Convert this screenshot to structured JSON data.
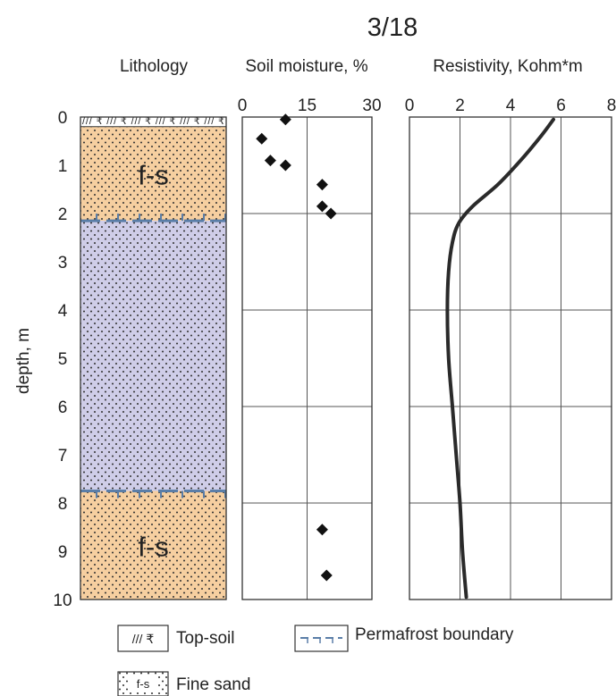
{
  "title": "3/18",
  "depth_axis": {
    "label": "depth, m",
    "ticks": [
      "0",
      "1",
      "2",
      "3",
      "4",
      "5",
      "6",
      "7",
      "8",
      "9",
      "10"
    ],
    "range": [
      0,
      10
    ]
  },
  "lithology": {
    "header": "Lithology",
    "layers": [
      {
        "type": "top-soil",
        "from": 0.0,
        "to": 0.2,
        "pattern": "/// ₹"
      },
      {
        "type": "fine-sand-thawed",
        "from": 0.2,
        "to": 2.15,
        "label": "f-s",
        "color": "#f6cfa0"
      },
      {
        "type": "fine-sand-frozen",
        "from": 2.15,
        "to": 7.75,
        "label": "",
        "color": "#cfcde8"
      },
      {
        "type": "fine-sand-thawed",
        "from": 7.75,
        "to": 10.0,
        "label": "f-s",
        "color": "#f6cfa0"
      }
    ],
    "permafrost_boundaries": [
      2.15,
      7.75
    ]
  },
  "legend": {
    "items": [
      {
        "name": "top-soil",
        "symbol": "/// ₹",
        "label": "Top-soil"
      },
      {
        "name": "permafrost-boundary",
        "label": "Permafrost boundary"
      },
      {
        "name": "fine-sand",
        "symbol": "f-s",
        "label": "Fine sand"
      }
    ]
  },
  "chart_data": [
    {
      "type": "scatter",
      "title": "Soil moisture, %",
      "x_ticks": [
        "0",
        "15",
        "30"
      ],
      "xlim": [
        0,
        30
      ],
      "ylim": [
        0,
        10
      ],
      "points": [
        {
          "moisture": 10,
          "depth": 0.05
        },
        {
          "moisture": 4.5,
          "depth": 0.45
        },
        {
          "moisture": 6.5,
          "depth": 0.9
        },
        {
          "moisture": 10,
          "depth": 1.0
        },
        {
          "moisture": 18.5,
          "depth": 1.4
        },
        {
          "moisture": 18.5,
          "depth": 1.85
        },
        {
          "moisture": 20.5,
          "depth": 2.0
        },
        {
          "moisture": 18.5,
          "depth": 8.55
        },
        {
          "moisture": 19.5,
          "depth": 9.5
        }
      ]
    },
    {
      "type": "line",
      "title": "Resistivity, Kohm*m",
      "x_ticks": [
        "0",
        "2",
        "4",
        "6",
        "8"
      ],
      "xlim": [
        0,
        8
      ],
      "ylim": [
        0,
        10
      ],
      "series": [
        {
          "points": [
            {
              "resistivity": 5.7,
              "depth": 0.05
            },
            {
              "resistivity": 5.2,
              "depth": 0.4
            },
            {
              "resistivity": 4.4,
              "depth": 0.9
            },
            {
              "resistivity": 3.5,
              "depth": 1.4
            },
            {
              "resistivity": 2.5,
              "depth": 1.85
            },
            {
              "resistivity": 1.95,
              "depth": 2.2
            },
            {
              "resistivity": 1.7,
              "depth": 2.6
            },
            {
              "resistivity": 1.55,
              "depth": 3.2
            },
            {
              "resistivity": 1.5,
              "depth": 4.0
            },
            {
              "resistivity": 1.55,
              "depth": 5.0
            },
            {
              "resistivity": 1.7,
              "depth": 6.0
            },
            {
              "resistivity": 1.85,
              "depth": 7.0
            },
            {
              "resistivity": 2.0,
              "depth": 8.0
            },
            {
              "resistivity": 2.1,
              "depth": 9.0
            },
            {
              "resistivity": 2.25,
              "depth": 9.95
            }
          ]
        }
      ]
    }
  ]
}
